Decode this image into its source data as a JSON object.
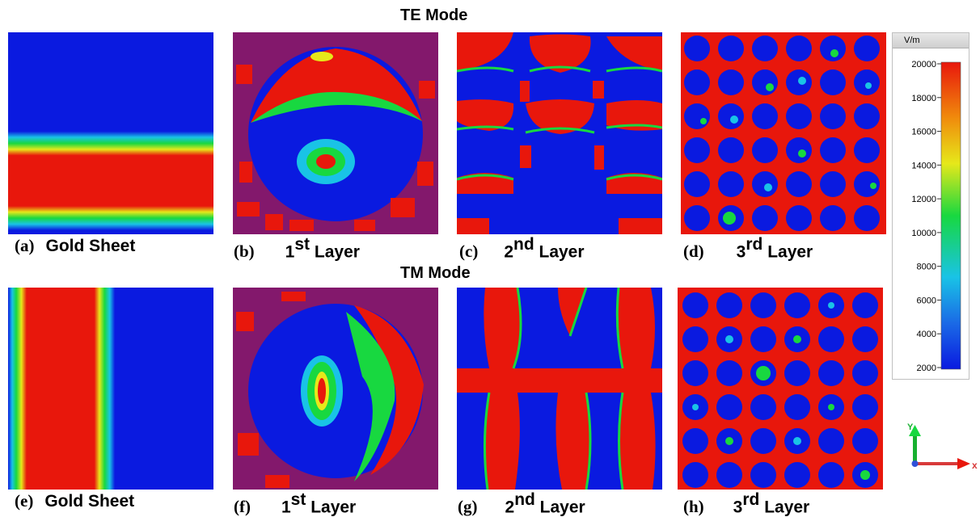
{
  "titles": {
    "te": "TE Mode",
    "tm": "TM Mode"
  },
  "captions": [
    {
      "letter": "(a)",
      "text": "Gold Sheet",
      "sup": ""
    },
    {
      "letter": "(b)",
      "text": "1",
      "sup": "st",
      "tail": " Layer"
    },
    {
      "letter": "(c)",
      "text": "2",
      "sup": "nd",
      "tail": " Layer"
    },
    {
      "letter": "(d)",
      "text": "3",
      "sup": "rd",
      "tail": "  Layer"
    },
    {
      "letter": "(e)",
      "text": "Gold Sheet",
      "sup": ""
    },
    {
      "letter": "(f)",
      "text": "1",
      "sup": "st",
      "tail": " Layer"
    },
    {
      "letter": "(g)",
      "text": "2",
      "sup": "nd",
      "tail": " Layer"
    },
    {
      "letter": "(h)",
      "text": "3",
      "sup": "rd",
      "tail": "  Layer"
    }
  ],
  "colorbar": {
    "unit": "V/m",
    "ticks": [
      "20000",
      "18000",
      "16000",
      "14000",
      "12000",
      "10000",
      "8000",
      "6000",
      "4000",
      "2000"
    ],
    "min": 2000,
    "max": 20000
  },
  "axes": {
    "y": "Y",
    "x": "x"
  },
  "colors": {
    "blue": "#0a1ae0",
    "red": "#e8170c",
    "green": "#18d840",
    "cyan": "#19c3e6",
    "yellow": "#e6e81a",
    "orange": "#f08a0c"
  }
}
